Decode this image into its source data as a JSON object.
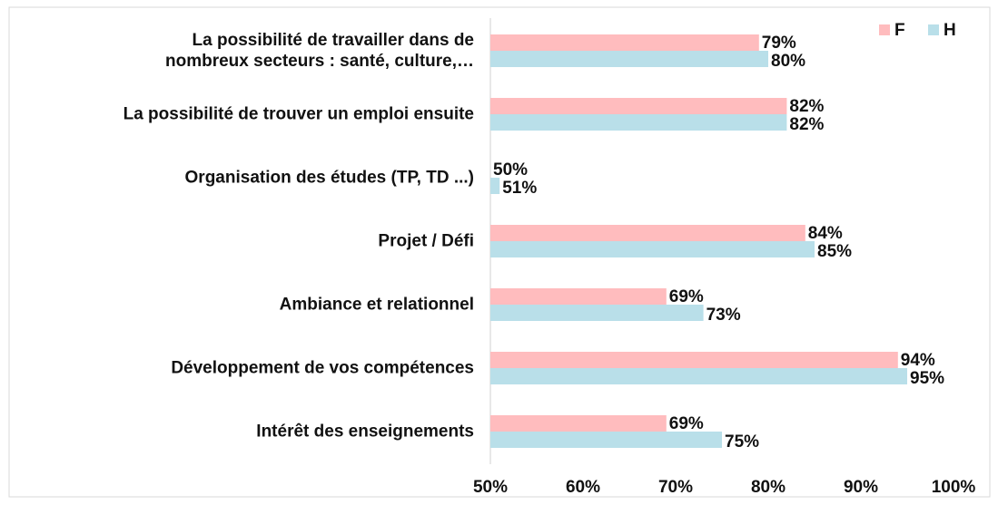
{
  "chart_data": {
    "type": "hbar",
    "categories": [
      "La possibilité de travailler dans de nombreux secteurs : santé, culture,…",
      "La possibilité de trouver un emploi ensuite",
      "Organisation des études (TP, TD ...)",
      "Projet / Défi",
      "Ambiance et relationnel",
      "Développement de vos compétences",
      "Intérêt des enseignements"
    ],
    "series": [
      {
        "name": "F",
        "color": "#ffbcbe",
        "values": [
          79,
          82,
          50,
          84,
          69,
          94,
          69
        ],
        "value_labels": [
          "79%",
          "82%",
          "50%",
          "84%",
          "69%",
          "94%",
          "69%"
        ]
      },
      {
        "name": "H",
        "color": "#b9dfe9",
        "values": [
          80,
          82,
          51,
          85,
          73,
          95,
          75
        ],
        "value_labels": [
          "80%",
          "82%",
          "51%",
          "85%",
          "73%",
          "95%",
          "75%"
        ]
      }
    ],
    "xlim": [
      50,
      100
    ],
    "xticks": [
      {
        "value": 50,
        "label": "50%"
      },
      {
        "value": 60,
        "label": "60%"
      },
      {
        "value": 70,
        "label": "70%"
      },
      {
        "value": 80,
        "label": "80%"
      },
      {
        "value": 90,
        "label": "90%"
      },
      {
        "value": 100,
        "label": "100%"
      }
    ],
    "legend": "top-right"
  }
}
